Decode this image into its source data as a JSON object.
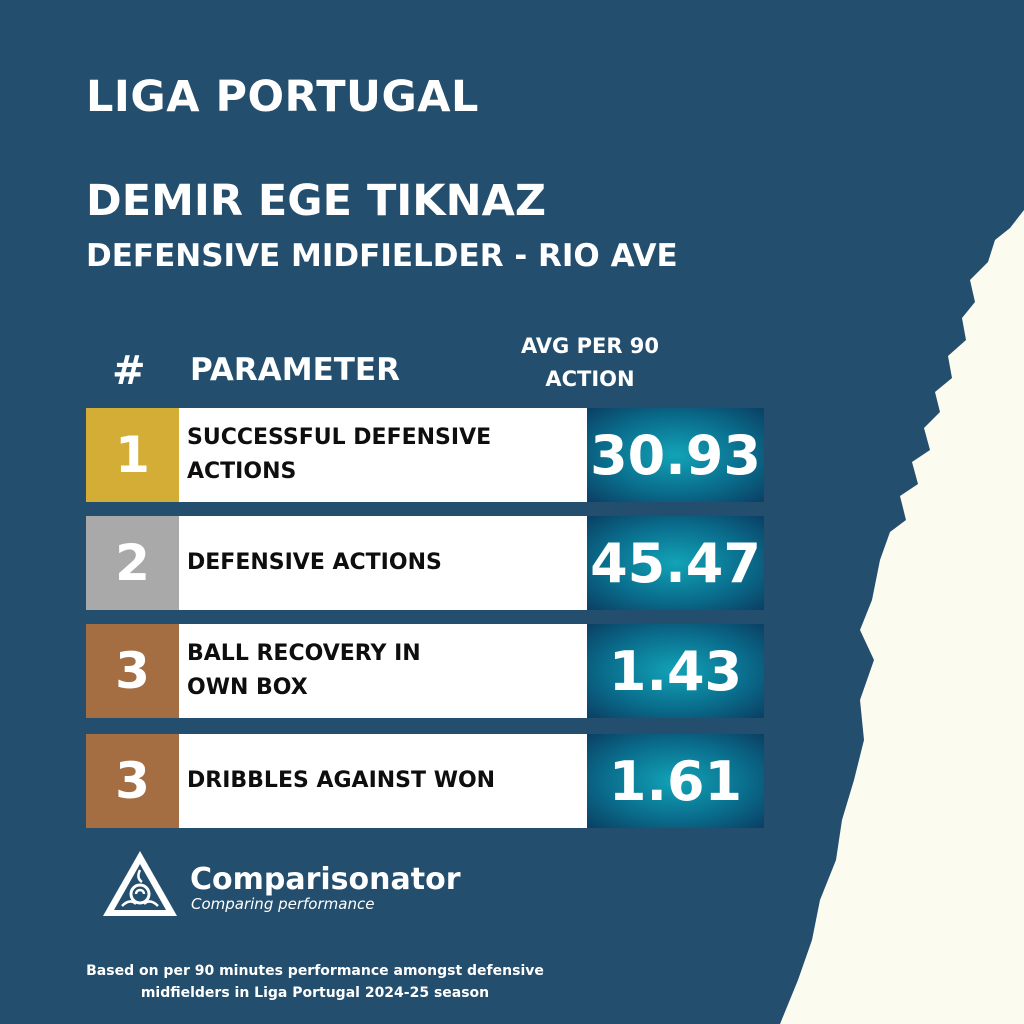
{
  "header": {
    "league": "LIGA PORTUGAL",
    "player": "DEMIR EGE TIKNAZ",
    "role": "DEFENSIVE MIDFIELDER - RIO AVE"
  },
  "table": {
    "col_rank": "#",
    "col_param": "PARAMETER",
    "col_avg_line1": "AVG PER 90",
    "col_avg_line2": "ACTION",
    "rows": [
      {
        "rank": "1",
        "param_line1": "SUCCESSFUL DEFENSIVE",
        "param_line2": "ACTIONS",
        "value": "30.93",
        "rank_color": "#d3ad35"
      },
      {
        "rank": "2",
        "param_line1": "DEFENSIVE ACTIONS",
        "param_line2": "",
        "value": "45.47",
        "rank_color": "#a9a9a9"
      },
      {
        "rank": "3",
        "param_line1": "BALL RECOVERY IN",
        "param_line2": "OWN BOX",
        "value": "1.43",
        "rank_color": "#a56d42"
      },
      {
        "rank": "3",
        "param_line1": "DRIBBLES AGAINST WON",
        "param_line2": "",
        "value": "1.61",
        "rank_color": "#a56d42"
      }
    ]
  },
  "brand": {
    "name": "Comparisonator",
    "tagline": "Comparing performance",
    "logo_icon": "comparisonator-triangle-logo"
  },
  "footnote": {
    "line1": "Based on per 90 minutes performance amongst defensive",
    "line2": "midfielders in Liga Portugal 2024-25 season"
  },
  "colors": {
    "background": "#244e6d",
    "torn_paper": "#fcfbef"
  }
}
